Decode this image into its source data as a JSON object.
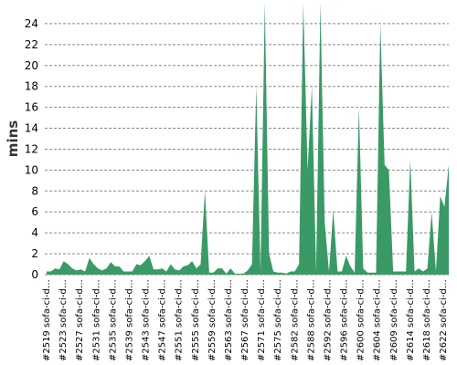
{
  "chart_data": {
    "type": "area",
    "title": "",
    "xlabel": "",
    "ylabel": "mins",
    "ylim": [
      0,
      26
    ],
    "yticks": [
      0,
      2,
      4,
      6,
      8,
      10,
      12,
      14,
      16,
      18,
      20,
      22,
      24
    ],
    "grid": "horizontal dashed",
    "legend": "none",
    "color": "#3a9a66",
    "x_labels": [
      "#2519 sofa-ci-d…",
      "#2523 sofa-ci-d…",
      "#2527 sofa-ci-d…",
      "#2531 sofa-ci-d…",
      "#2535 sofa-ci-d…",
      "#2539 sofa-ci-d…",
      "#2543 sofa-ci-d…",
      "#2547 sofa-ci-d…",
      "#2551 sofa-ci-d…",
      "#2555 sofa-ci-d…",
      "#2559 sofa-ci-d…",
      "#2563 sofa-ci-d…",
      "#2567 sofa-ci-d…",
      "#2571 sofa-ci-d…",
      "#2575 sofa-ci-d…",
      "#2582 sofa-ci-d…",
      "#2588 sofa-ci-d…",
      "#2592 sofa-ci-d…",
      "#2596 sofa-ci-d…",
      "#2600 sofa-ci-d…",
      "#2604 sofa-ci-d…",
      "#2609 sofa-ci-d…",
      "#2614 sofa-ci-d…",
      "#2618 sofa-ci-d…",
      "#2622 sofa-ci-d…"
    ],
    "values": [
      0.3,
      0.3,
      0.6,
      0.5,
      1.3,
      1.0,
      0.6,
      0.4,
      0.5,
      0.3,
      1.6,
      1.0,
      0.6,
      0.4,
      0.6,
      1.2,
      0.8,
      0.8,
      0.3,
      0.3,
      0.3,
      1.0,
      0.9,
      1.3,
      1.8,
      0.5,
      0.5,
      0.6,
      0.3,
      1.0,
      0.5,
      0.4,
      0.8,
      0.9,
      1.3,
      0.6,
      1.0,
      8.0,
      0.2,
      0.2,
      0.6,
      0.6,
      0.1,
      0.6,
      0.1,
      0.1,
      0.1,
      0.4,
      1.0,
      18.0,
      0.3,
      26.0,
      2.0,
      0.3,
      0.2,
      0.2,
      0.1,
      0.3,
      0.3,
      1.0,
      26.0,
      10.0,
      18.0,
      0.3,
      26.0,
      5.0,
      0.3,
      6.2,
      0.3,
      0.3,
      1.8,
      0.8,
      0.2,
      16.0,
      0.6,
      0.2,
      0.2,
      0.2,
      24.0,
      10.5,
      10.0,
      0.3,
      0.3,
      0.3,
      0.3,
      11.0,
      0.3,
      0.6,
      0.3,
      0.6,
      6.0,
      0.3,
      7.5,
      6.5,
      10.5
    ]
  }
}
